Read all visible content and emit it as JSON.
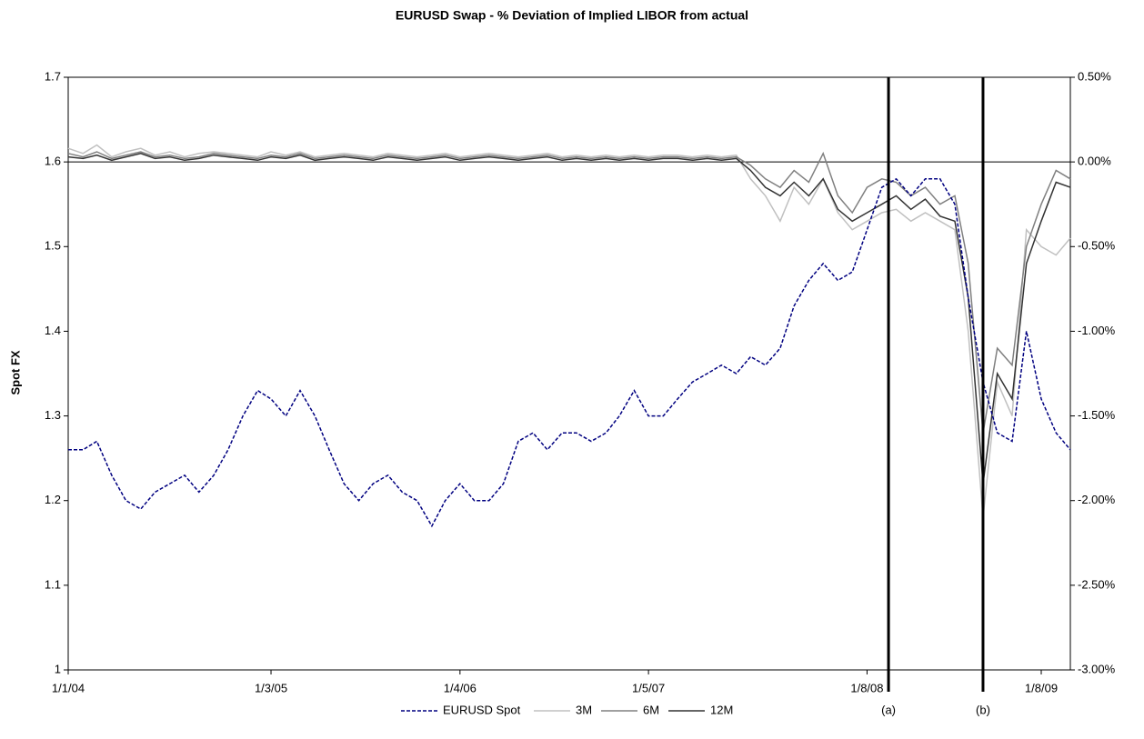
{
  "chart_data": {
    "type": "line",
    "title": "EURUSD Swap - % Deviation of Implied LIBOR from actual",
    "y_label": "Spot FX",
    "x": [
      "2004-01-01",
      "2004-02-01",
      "2004-03-01",
      "2004-04-01",
      "2004-05-01",
      "2004-06-01",
      "2004-07-01",
      "2004-08-01",
      "2004-09-01",
      "2004-10-01",
      "2004-11-01",
      "2004-12-01",
      "2005-01-01",
      "2005-02-01",
      "2005-03-01",
      "2005-04-01",
      "2005-05-01",
      "2005-06-01",
      "2005-07-01",
      "2005-08-01",
      "2005-09-01",
      "2005-10-01",
      "2005-11-01",
      "2005-12-01",
      "2006-01-01",
      "2006-02-01",
      "2006-03-01",
      "2006-04-01",
      "2006-05-01",
      "2006-06-01",
      "2006-07-01",
      "2006-08-01",
      "2006-09-01",
      "2006-10-01",
      "2006-11-01",
      "2006-12-01",
      "2007-01-01",
      "2007-02-01",
      "2007-03-01",
      "2007-04-01",
      "2007-05-01",
      "2007-06-01",
      "2007-07-01",
      "2007-08-01",
      "2007-09-01",
      "2007-10-01",
      "2007-11-01",
      "2007-12-01",
      "2008-01-01",
      "2008-02-01",
      "2008-03-01",
      "2008-04-01",
      "2008-05-01",
      "2008-06-01",
      "2008-07-01",
      "2008-08-01",
      "2008-09-01",
      "2008-10-01",
      "2008-11-01",
      "2008-12-01",
      "2009-01-01",
      "2009-02-01",
      "2009-03-01",
      "2009-04-01",
      "2009-05-01",
      "2009-06-01",
      "2009-07-01",
      "2009-08-01",
      "2009-09-01",
      "2009-10-01"
    ],
    "series": [
      {
        "name": "EURUSD Spot",
        "color": "#000080",
        "dashed": true,
        "axis": "y",
        "values": [
          1.26,
          1.26,
          1.27,
          1.23,
          1.2,
          1.19,
          1.21,
          1.22,
          1.23,
          1.21,
          1.23,
          1.26,
          1.3,
          1.33,
          1.32,
          1.3,
          1.33,
          1.3,
          1.26,
          1.22,
          1.2,
          1.22,
          1.23,
          1.21,
          1.2,
          1.17,
          1.2,
          1.22,
          1.2,
          1.2,
          1.22,
          1.27,
          1.28,
          1.26,
          1.28,
          1.28,
          1.27,
          1.28,
          1.3,
          1.33,
          1.3,
          1.3,
          1.32,
          1.34,
          1.35,
          1.36,
          1.35,
          1.37,
          1.36,
          1.38,
          1.43,
          1.46,
          1.48,
          1.46,
          1.47,
          1.52,
          1.57,
          1.58,
          1.56,
          1.58,
          1.58,
          1.55,
          1.44,
          1.34,
          1.28,
          1.27,
          1.4,
          1.32,
          1.28,
          1.26
        ]
      },
      {
        "name": "3M",
        "color": "#c0c0c0",
        "dashed": false,
        "axis": "y2",
        "values": [
          0.08,
          0.05,
          0.1,
          0.03,
          0.06,
          0.08,
          0.04,
          0.06,
          0.03,
          0.05,
          0.06,
          0.05,
          0.04,
          0.03,
          0.06,
          0.04,
          0.06,
          0.03,
          0.04,
          0.05,
          0.04,
          0.03,
          0.05,
          0.04,
          0.03,
          0.04,
          0.05,
          0.03,
          0.04,
          0.05,
          0.04,
          0.03,
          0.04,
          0.05,
          0.03,
          0.04,
          0.03,
          0.04,
          0.03,
          0.04,
          0.03,
          0.04,
          0.04,
          0.03,
          0.04,
          0.03,
          0.04,
          -0.1,
          -0.2,
          -0.35,
          -0.15,
          -0.25,
          -0.1,
          -0.3,
          -0.4,
          -0.35,
          -0.3,
          -0.28,
          -0.35,
          -0.3,
          -0.35,
          -0.4,
          -1.0,
          -2.1,
          -1.3,
          -1.5,
          -0.4,
          -0.5,
          -0.55,
          -0.45
        ]
      },
      {
        "name": "6M",
        "color": "#808080",
        "dashed": false,
        "axis": "y2",
        "values": [
          0.05,
          0.03,
          0.06,
          0.02,
          0.04,
          0.06,
          0.03,
          0.04,
          0.02,
          0.03,
          0.05,
          0.04,
          0.03,
          0.02,
          0.04,
          0.03,
          0.05,
          0.02,
          0.03,
          0.04,
          0.03,
          0.02,
          0.04,
          0.03,
          0.02,
          0.03,
          0.04,
          0.02,
          0.03,
          0.04,
          0.03,
          0.02,
          0.03,
          0.04,
          0.02,
          0.03,
          0.02,
          0.03,
          0.02,
          0.03,
          0.02,
          0.03,
          0.03,
          0.02,
          0.03,
          0.02,
          0.03,
          -0.02,
          -0.1,
          -0.15,
          -0.05,
          -0.12,
          0.05,
          -0.2,
          -0.3,
          -0.15,
          -0.1,
          -0.12,
          -0.2,
          -0.15,
          -0.25,
          -0.2,
          -0.6,
          -1.6,
          -1.1,
          -1.2,
          -0.5,
          -0.25,
          -0.05,
          -0.1
        ]
      },
      {
        "name": "12M",
        "color": "#333333",
        "dashed": false,
        "axis": "y2",
        "values": [
          0.03,
          0.02,
          0.04,
          0.01,
          0.03,
          0.05,
          0.02,
          0.03,
          0.01,
          0.02,
          0.04,
          0.03,
          0.02,
          0.01,
          0.03,
          0.02,
          0.04,
          0.01,
          0.02,
          0.03,
          0.02,
          0.01,
          0.03,
          0.02,
          0.01,
          0.02,
          0.03,
          0.01,
          0.02,
          0.03,
          0.02,
          0.01,
          0.02,
          0.03,
          0.01,
          0.02,
          0.01,
          0.02,
          0.01,
          0.02,
          0.01,
          0.02,
          0.02,
          0.01,
          0.02,
          0.01,
          0.02,
          -0.05,
          -0.15,
          -0.2,
          -0.12,
          -0.2,
          -0.1,
          -0.28,
          -0.35,
          -0.3,
          -0.25,
          -0.2,
          -0.28,
          -0.22,
          -0.32,
          -0.35,
          -0.8,
          -1.9,
          -1.25,
          -1.4,
          -0.6,
          -0.35,
          -0.12,
          -0.15
        ]
      }
    ],
    "xlim": [
      "2004-01-01",
      "2009-10-01"
    ],
    "xticks": [
      {
        "value": "2004-01-01",
        "label": "1/1/04"
      },
      {
        "value": "2005-03-01",
        "label": "1/3/05"
      },
      {
        "value": "2006-04-01",
        "label": "1/4/06"
      },
      {
        "value": "2007-05-01",
        "label": "1/5/07"
      },
      {
        "value": "2008-08-01",
        "label": "1/8/08"
      },
      {
        "value": "2009-08-01",
        "label": "1/8/09"
      }
    ],
    "ylim": [
      1,
      1.7
    ],
    "yticks": [
      1,
      1.1,
      1.2,
      1.3,
      1.4,
      1.5,
      1.6,
      1.7
    ],
    "y2lim": [
      -3,
      0.5
    ],
    "y2ticks": [
      {
        "value": -3,
        "label": "-3.00%"
      },
      {
        "value": -2.5,
        "label": "-2.50%"
      },
      {
        "value": -2,
        "label": "-2.00%"
      },
      {
        "value": -1.5,
        "label": "-1.50%"
      },
      {
        "value": -1,
        "label": "-1.00%"
      },
      {
        "value": -0.5,
        "label": "-0.50%"
      },
      {
        "value": 0,
        "label": "0.00%"
      },
      {
        "value": 0.5,
        "label": "0.50%"
      }
    ],
    "annotations": [
      {
        "label": "(a)",
        "x": "2008-09-15"
      },
      {
        "label": "(b)",
        "x": "2009-04-01"
      }
    ],
    "legend": "bottom"
  }
}
